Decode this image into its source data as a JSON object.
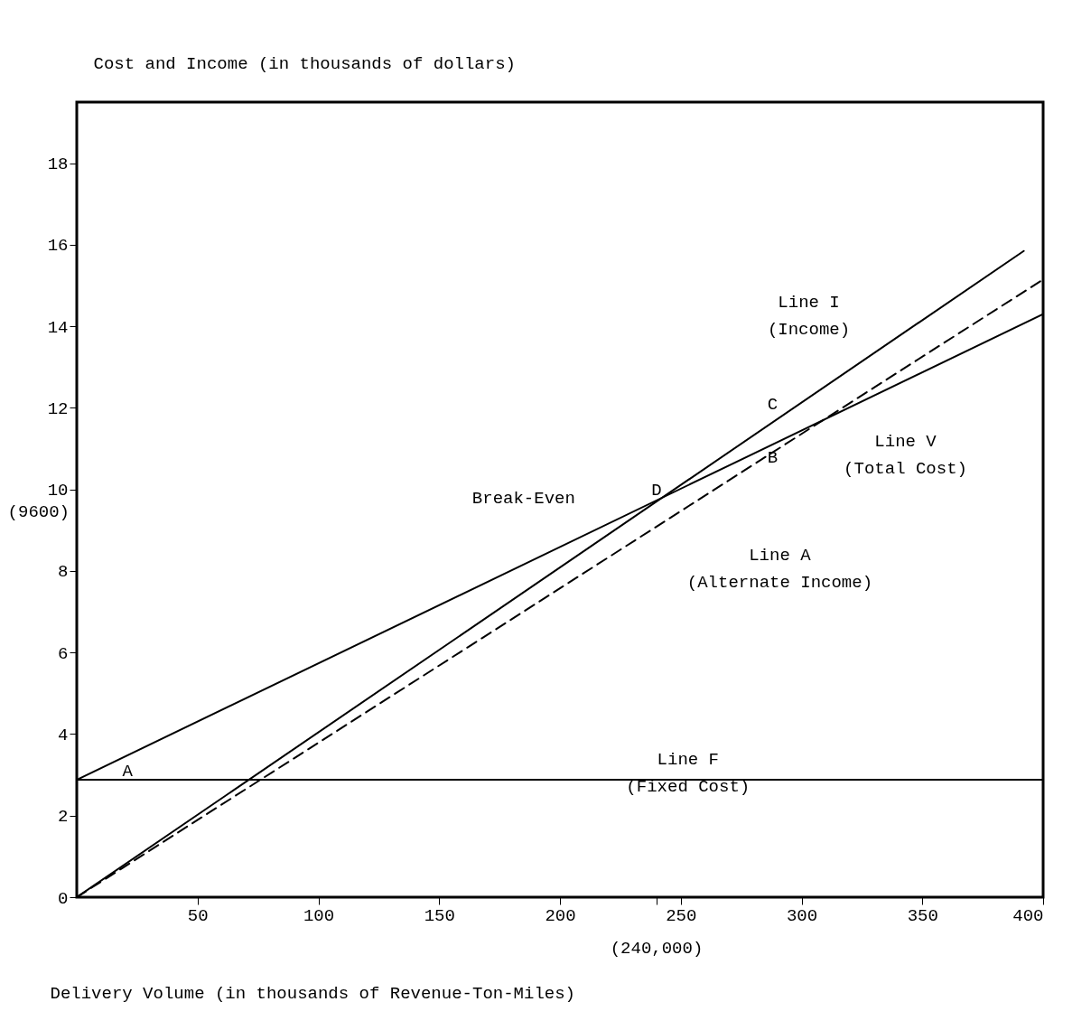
{
  "chart_data": {
    "type": "line",
    "ylabel": "Cost and Income (in thousands of dollars)",
    "xlabel": "Delivery Volume (in thousands of Revenue-Ton-Miles)",
    "xlim": [
      0,
      400
    ],
    "ylim": [
      0,
      19.5
    ],
    "xticks": [
      50,
      100,
      150,
      200,
      {
        "value": 240,
        "label": null
      },
      250,
      300,
      350,
      400
    ],
    "yticks": [
      0,
      2,
      4,
      6,
      8,
      10,
      12,
      14,
      16,
      18
    ],
    "grid": false,
    "marker": "none",
    "series": [
      {
        "color": "#000000",
        "line_style": "solid",
        "x": [
          0,
          400
        ],
        "values": [
          2.88,
          2.88
        ]
      },
      {
        "color": "#000000",
        "line_style": "solid",
        "x": [
          0,
          400
        ],
        "values": [
          2.88,
          14.3
        ]
      },
      {
        "color": "#000000",
        "line_style": "solid",
        "x": [
          0,
          392
        ],
        "values": [
          0,
          15.85
        ]
      },
      {
        "color": "#000000",
        "line_style": "dashed",
        "x": [
          0,
          400
        ],
        "values": [
          0,
          15.15
        ]
      }
    ],
    "annotations": [
      "Line I\n(Income)",
      "Line V\n(Total Cost)",
      "Line A\n(Alternate Income)",
      "Line F\n(Fixed Cost)",
      "Break-Even",
      "A",
      "B",
      "C",
      "D",
      "(240,000)",
      "(9600)"
    ]
  }
}
